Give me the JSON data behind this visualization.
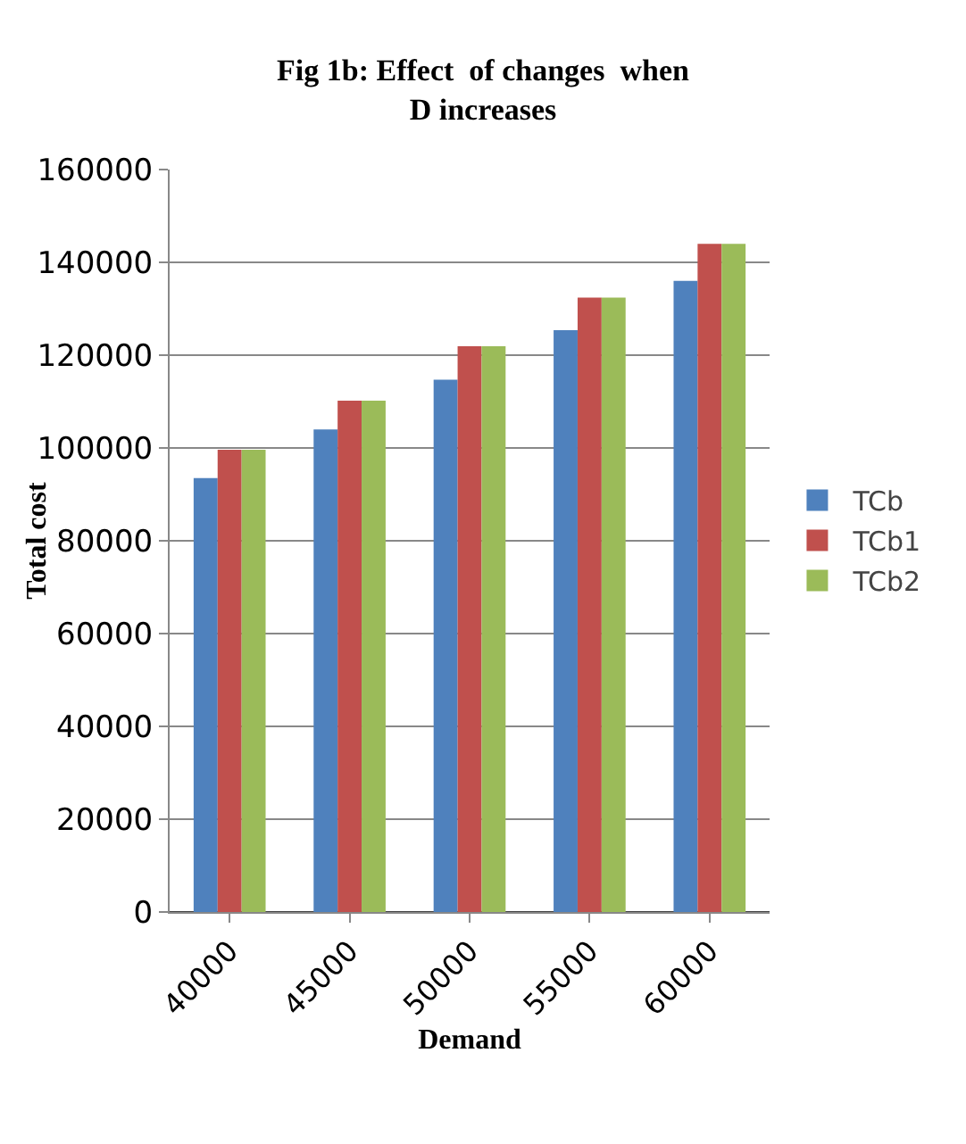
{
  "chart_data": {
    "type": "bar",
    "title": "Fig 1b: Effect  of changes  when D increases",
    "xlabel": "Demand",
    "ylabel": "Total cost",
    "categories": [
      "40000",
      "45000",
      "50000",
      "55000",
      "60000"
    ],
    "series": [
      {
        "name": "TCb",
        "color": "#4f81bd",
        "values": [
          93500,
          104000,
          114700,
          125400,
          136000
        ]
      },
      {
        "name": "TCb1",
        "color": "#c0504d",
        "values": [
          99600,
          110200,
          121900,
          132400,
          144000
        ]
      },
      {
        "name": "TCb2",
        "color": "#9bbb59",
        "values": [
          99600,
          110200,
          121900,
          132400,
          144000
        ]
      }
    ],
    "ylim": [
      0,
      160000
    ],
    "yticks": [
      0,
      20000,
      40000,
      60000,
      80000,
      100000,
      120000,
      140000,
      160000
    ],
    "grid": "y",
    "legend": "right"
  }
}
